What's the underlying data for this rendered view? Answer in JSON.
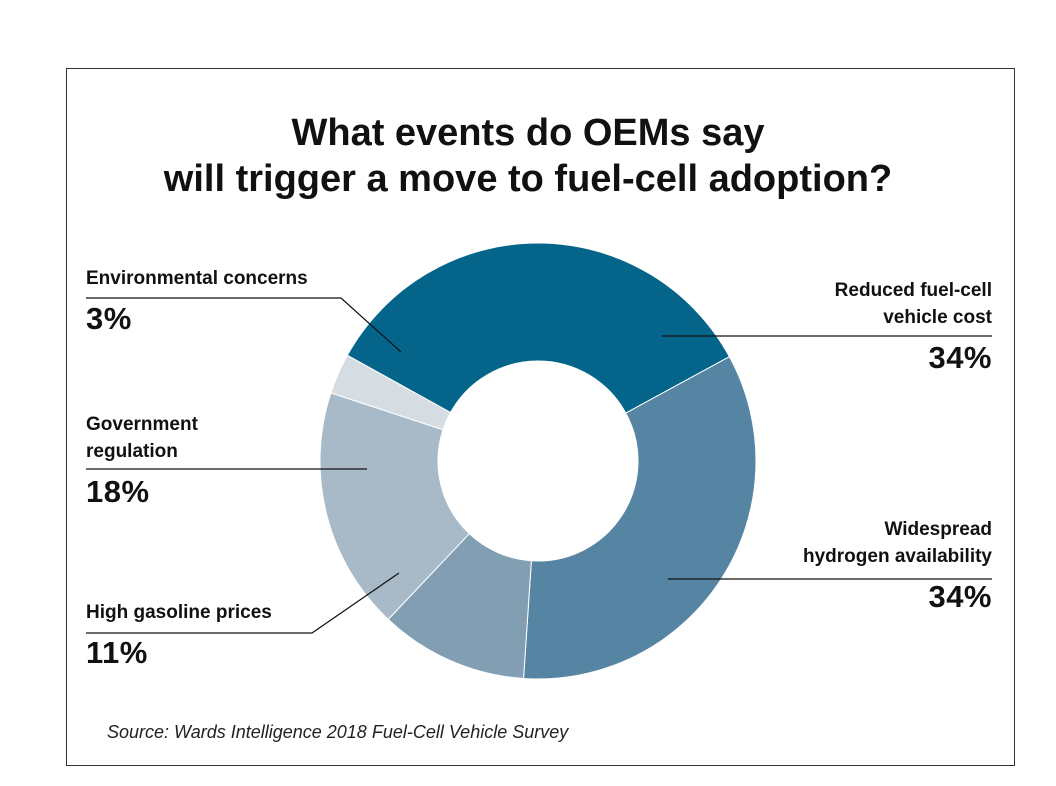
{
  "chart_data": {
    "type": "pie",
    "title_lines": [
      "What events do OEMs say",
      "will trigger a move to fuel-cell adoption?"
    ],
    "slices": [
      {
        "label_lines": [
          "Reduced fuel-cell",
          "vehicle cost"
        ],
        "value": 34,
        "value_label": "34%",
        "color": "#04648a"
      },
      {
        "label_lines": [
          "Widespread",
          "hydrogen availability"
        ],
        "value": 34,
        "value_label": "34%",
        "color": "#5585a3"
      },
      {
        "label_lines": [
          "High gasoline prices"
        ],
        "value": 11,
        "value_label": "11%",
        "color": "#819eb3"
      },
      {
        "label_lines": [
          "Government",
          "regulation"
        ],
        "value": 18,
        "value_label": "18%",
        "color": "#a8bac8"
      },
      {
        "label_lines": [
          "Environmental concerns"
        ],
        "value": 3,
        "value_label": "3%",
        "color": "#d5dde3"
      }
    ],
    "source": "Source: Wards Intelligence 2018 Fuel-Cell Vehicle Survey"
  }
}
